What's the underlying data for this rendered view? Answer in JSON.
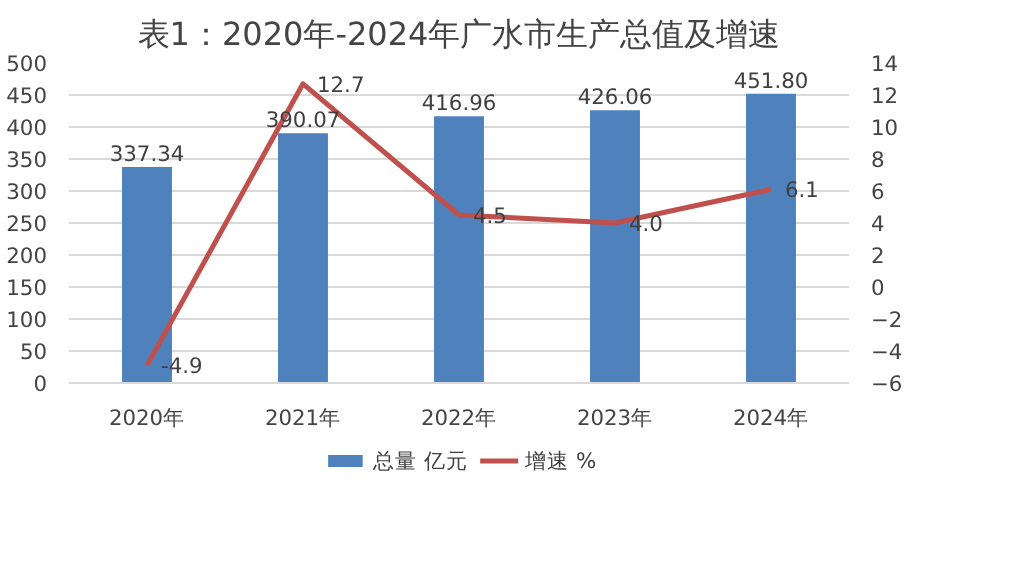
{
  "chart_data": {
    "type": "bar",
    "title": "表1：2020年-2024年广水市生产总值及增速",
    "categories": [
      "2020年",
      "2021年",
      "2022年",
      "2023年",
      "2024年"
    ],
    "series": [
      {
        "name": "总量 亿元",
        "color": "#4f81bd",
        "values": [
          337.34,
          390.07,
          416.96,
          426.06,
          451.8
        ],
        "value_labels": [
          "337.34",
          "390.07",
          "416.96",
          "426.06",
          "451.80"
        ]
      },
      {
        "name": "增速 %",
        "type": "line",
        "axis": "y2",
        "color": "#c0504d",
        "values": [
          -4.9,
          12.7,
          4.5,
          4.0,
          6.1
        ],
        "value_labels": [
          "-4.9",
          "12.7",
          "4.5",
          "4.0",
          "6.1"
        ]
      }
    ],
    "ylim": [
      0,
      500
    ],
    "yticks": [
      0,
      50,
      100,
      150,
      200,
      250,
      300,
      350,
      400,
      450,
      500
    ],
    "y2lim": [
      -6,
      14
    ],
    "y2ticks": [
      -6,
      -4,
      -2,
      0,
      2,
      4,
      6,
      8,
      10,
      12,
      14
    ],
    "grid": "y",
    "legend": "bottom",
    "marker": "none",
    "line_style": "solid"
  }
}
